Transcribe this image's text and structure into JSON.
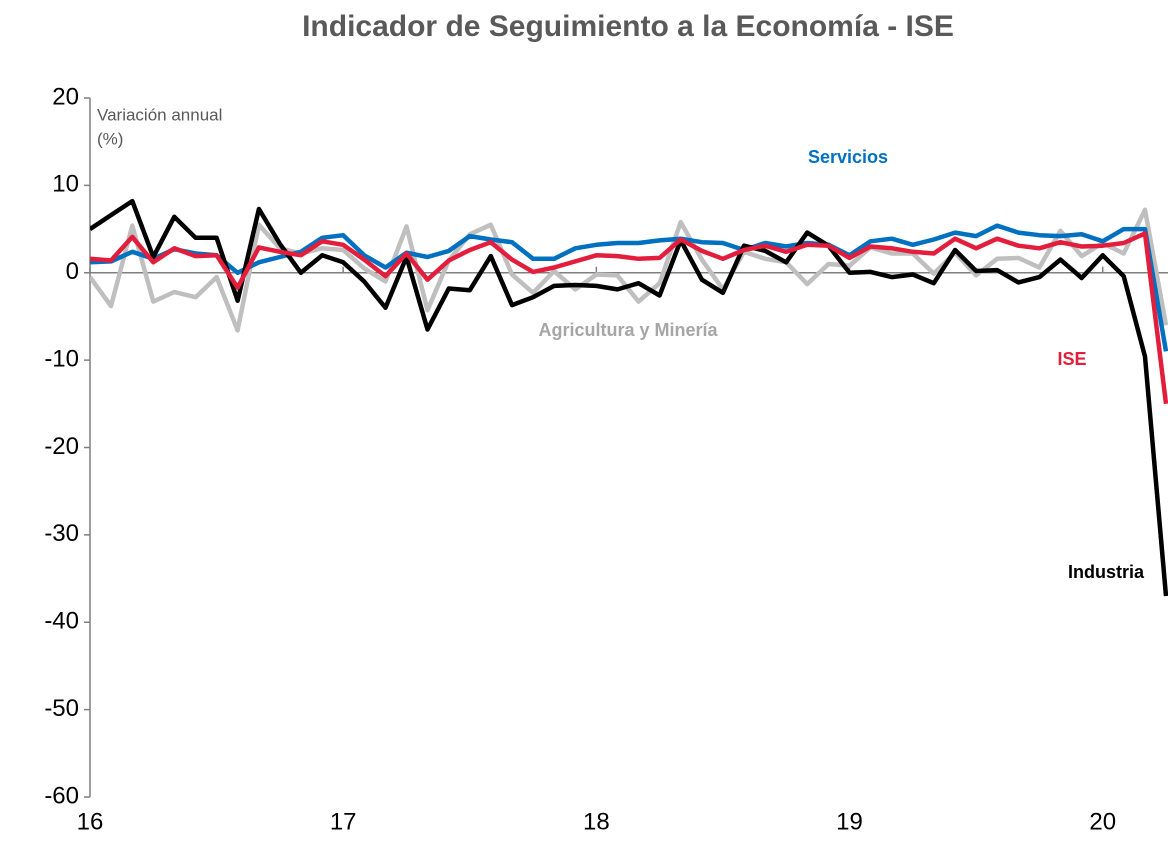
{
  "chart_data": {
    "type": "line",
    "title": "Indicador de Seguimiento a la Economía - ISE",
    "y_label_line1": "Variación annual",
    "y_label_line2": "(%)",
    "x": [
      16,
      16.083,
      16.167,
      16.25,
      16.333,
      16.417,
      16.5,
      16.583,
      16.667,
      16.75,
      16.833,
      16.917,
      17,
      17.083,
      17.167,
      17.25,
      17.333,
      17.417,
      17.5,
      17.583,
      17.667,
      17.75,
      17.833,
      17.917,
      18,
      18.083,
      18.167,
      18.25,
      18.333,
      18.417,
      18.5,
      18.583,
      18.667,
      18.75,
      18.833,
      18.917,
      19,
      19.083,
      19.167,
      19.25,
      19.333,
      19.417,
      19.5,
      19.583,
      19.667,
      19.75,
      19.833,
      19.917,
      20,
      20.083,
      20.167,
      20.25
    ],
    "xlim": [
      16,
      20.25
    ],
    "xticks": [
      16,
      17,
      18,
      19,
      20
    ],
    "ylim": [
      -60,
      20
    ],
    "yticks": [
      -60,
      -50,
      -40,
      -30,
      -20,
      -10,
      0,
      10,
      20
    ],
    "series": [
      {
        "name": "Agricultura y Minería",
        "color": "#bfbfbf",
        "values": [
          -0.5,
          -3.8,
          5.4,
          -3.3,
          -2.2,
          -2.8,
          -0.5,
          -6.6,
          5.5,
          2.8,
          2.2,
          2.8,
          2.6,
          0.5,
          -1,
          5.3,
          -4.3,
          1.4,
          4.4,
          5.5,
          -0.2,
          -2.3,
          0.2,
          -1.9,
          -0.2,
          -0.3,
          -3.3,
          -1.2,
          5.8,
          1.5,
          -1.9,
          2.4,
          1.6,
          1.2,
          -1.3,
          1,
          0.8,
          2.9,
          2.2,
          2.2,
          -0.1,
          2.3,
          -0.3,
          1.6,
          1.7,
          0.6,
          4.8,
          1.9,
          3.4,
          2.2,
          7.2,
          -6
        ]
      },
      {
        "name": "Servicios",
        "color": "#0070c0",
        "values": [
          1.2,
          1.3,
          2.4,
          1.6,
          2.7,
          2.2,
          2,
          0,
          1.2,
          1.8,
          2.4,
          4,
          4.3,
          2,
          0.6,
          2.3,
          1.8,
          2.5,
          4.2,
          3.8,
          3.5,
          1.6,
          1.6,
          2.8,
          3.2,
          3.4,
          3.4,
          3.7,
          3.9,
          3.5,
          3.4,
          2.6,
          3.4,
          3,
          3.4,
          3.2,
          2,
          3.6,
          3.9,
          3.2,
          3.8,
          4.6,
          4.2,
          5.4,
          4.6,
          4.3,
          4.2,
          4.4,
          3.6,
          5,
          5,
          -9
        ]
      },
      {
        "name": "Industria",
        "color": "#000000",
        "values": [
          5,
          6.6,
          8.2,
          1.8,
          6.4,
          4,
          4,
          -3.2,
          7.3,
          3.3,
          0,
          2,
          1.2,
          -1,
          -4,
          1.8,
          -6.5,
          -1.8,
          -2,
          1.9,
          -3.7,
          -2.8,
          -1.5,
          -1.4,
          -1.5,
          -1.9,
          -1.2,
          -2.6,
          3.7,
          -0.8,
          -2.3,
          3.1,
          2.5,
          1.2,
          4.6,
          3.1,
          0,
          0.1,
          -0.5,
          -0.2,
          -1.2,
          2.6,
          0.2,
          0.3,
          -1.1,
          -0.5,
          1.5,
          -0.6,
          2,
          -0.4,
          -9.6,
          -37
        ]
      },
      {
        "name": "ISE",
        "color": "#e31d3c",
        "values": [
          1.6,
          1.4,
          4.1,
          1.2,
          2.8,
          1.9,
          2,
          -1.7,
          2.9,
          2.4,
          2,
          3.6,
          3.2,
          1.5,
          -0.4,
          2.2,
          -0.8,
          1.4,
          2.6,
          3.5,
          1.5,
          0.1,
          0.6,
          1.3,
          2,
          1.9,
          1.6,
          1.7,
          3.8,
          2.5,
          1.6,
          2.6,
          3.1,
          2.4,
          3.2,
          3.1,
          1.7,
          3,
          2.8,
          2.4,
          2.2,
          3.9,
          2.8,
          3.9,
          3.1,
          2.8,
          3.5,
          3,
          3.1,
          3.4,
          4.5,
          -15
        ]
      }
    ]
  }
}
